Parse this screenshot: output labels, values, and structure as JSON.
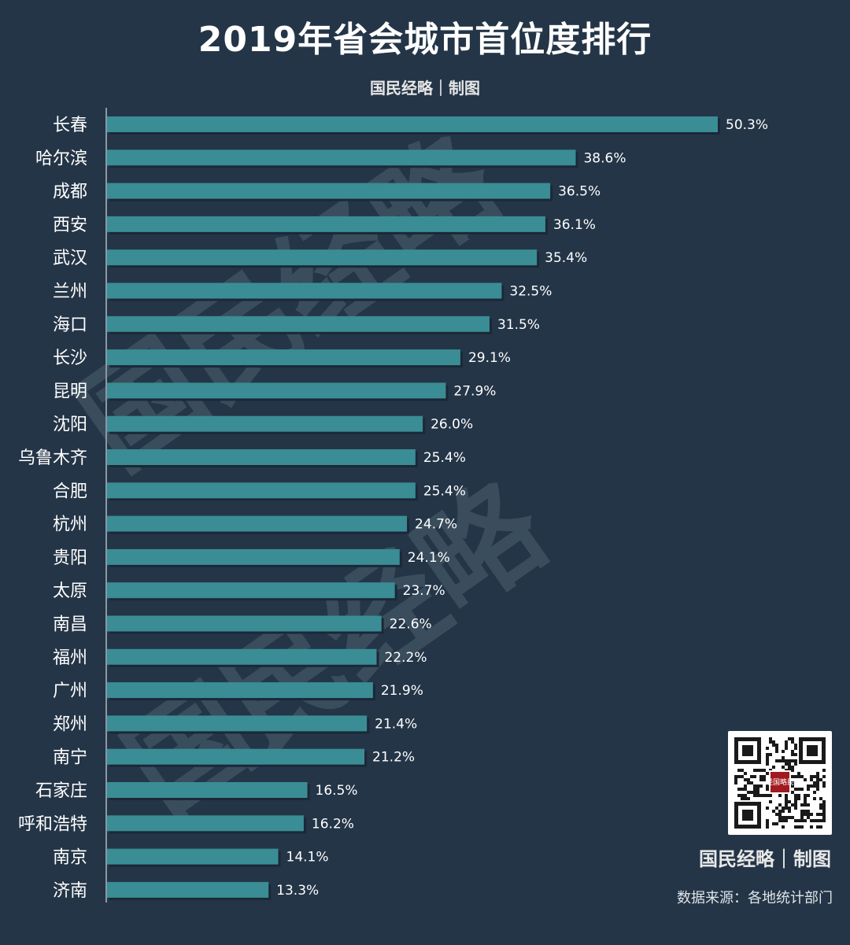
{
  "title": "2019年省会城市首位度排行",
  "subtitle": "国民经略｜制图",
  "watermark": "国民经略",
  "footer": {
    "brand": "国民经略｜制图",
    "source": "数据来源：各地统计部门",
    "qr_center_text": "经国略民"
  },
  "colors": {
    "background": "#243547",
    "bar": "#3a8d94"
  },
  "chart_data": {
    "type": "bar",
    "orientation": "horizontal",
    "title": "2019年省会城市首位度排行",
    "categories": [
      "长春",
      "哈尔滨",
      "成都",
      "西安",
      "武汉",
      "兰州",
      "海口",
      "长沙",
      "昆明",
      "沈阳",
      "乌鲁木齐",
      "合肥",
      "杭州",
      "贵阳",
      "太原",
      "南昌",
      "福州",
      "广州",
      "郑州",
      "南宁",
      "石家庄",
      "呼和浩特",
      "南京",
      "济南"
    ],
    "values": [
      50.3,
      38.6,
      36.5,
      36.1,
      35.4,
      32.5,
      31.5,
      29.1,
      27.9,
      26.0,
      25.4,
      25.4,
      24.7,
      24.1,
      23.7,
      22.6,
      22.2,
      21.9,
      21.4,
      21.2,
      16.5,
      16.2,
      14.1,
      13.3
    ],
    "value_labels": [
      "50.3%",
      "38.6%",
      "36.5%",
      "36.1%",
      "35.4%",
      "32.5%",
      "31.5%",
      "29.1%",
      "27.9%",
      "26.0%",
      "25.4%",
      "25.4%",
      "24.7%",
      "24.1%",
      "23.7%",
      "22.6%",
      "22.2%",
      "21.9%",
      "21.4%",
      "21.2%",
      "16.5%",
      "16.2%",
      "14.1%",
      "13.3%"
    ],
    "unit": "%",
    "xlim": [
      0,
      50.3
    ],
    "grid": false,
    "legend": "none"
  }
}
